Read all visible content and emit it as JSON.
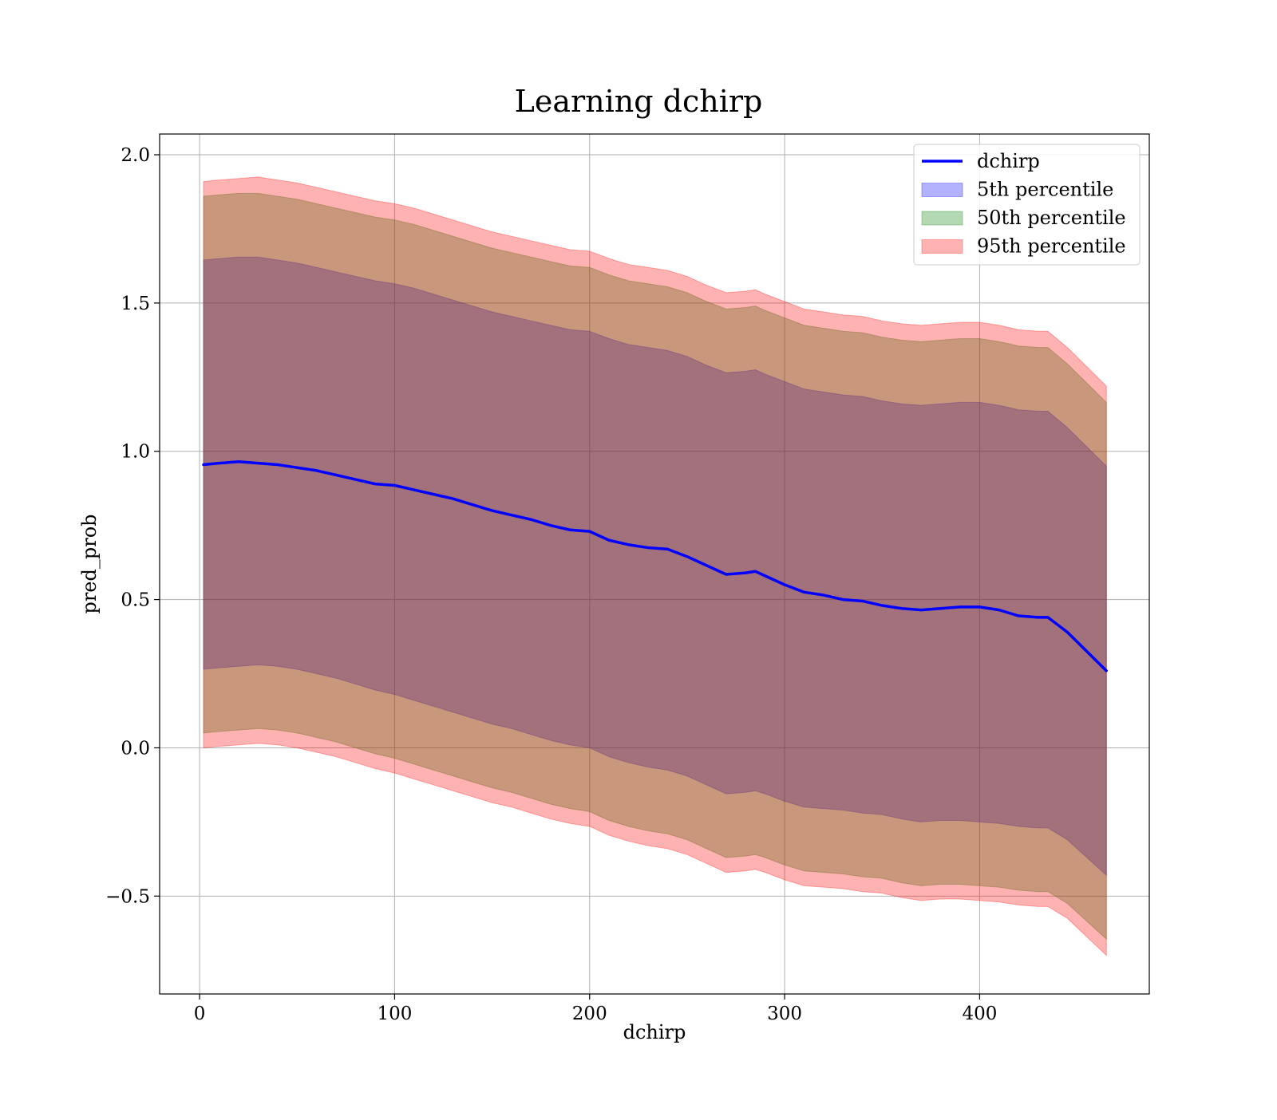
{
  "chart_data": {
    "type": "area",
    "title": "Learning dchirp",
    "xlabel": "dchirp",
    "ylabel": "pred_prob",
    "xlim": [
      -20.5,
      487
    ],
    "ylim": [
      -0.83,
      2.07
    ],
    "grid": true,
    "legend_position": "top-right",
    "x_ticks": [
      0,
      100,
      200,
      300,
      400
    ],
    "y_ticks": [
      -0.5,
      0.0,
      0.5,
      1.0,
      1.5,
      2.0
    ],
    "x_tick_labels": [
      "0",
      "100",
      "200",
      "300",
      "400"
    ],
    "y_tick_labels": [
      "−0.5",
      "0.0",
      "0.5",
      "1.0",
      "1.5",
      "2.0"
    ],
    "colors": {
      "line": "#0000ff",
      "band_5th": "#0000ff",
      "band_50th": "#008000",
      "band_95th": "#ff0000",
      "grid": "#b0b0b0"
    },
    "x": [
      2,
      10,
      20,
      30,
      40,
      50,
      60,
      70,
      80,
      90,
      100,
      110,
      120,
      130,
      140,
      150,
      160,
      170,
      180,
      190,
      200,
      210,
      220,
      230,
      240,
      250,
      260,
      270,
      280,
      285,
      290,
      300,
      310,
      320,
      330,
      340,
      350,
      360,
      370,
      380,
      390,
      400,
      410,
      420,
      430,
      435,
      445,
      465
    ],
    "series": [
      {
        "name": "dchirp",
        "kind": "line",
        "values": [
          0.955,
          0.96,
          0.965,
          0.96,
          0.955,
          0.945,
          0.935,
          0.92,
          0.905,
          0.89,
          0.885,
          0.87,
          0.855,
          0.84,
          0.82,
          0.8,
          0.785,
          0.77,
          0.75,
          0.735,
          0.73,
          0.7,
          0.685,
          0.675,
          0.67,
          0.645,
          0.615,
          0.585,
          0.59,
          0.595,
          0.58,
          0.55,
          0.525,
          0.515,
          0.5,
          0.495,
          0.48,
          0.47,
          0.465,
          0.47,
          0.475,
          0.475,
          0.465,
          0.445,
          0.44,
          0.44,
          0.39,
          0.26
        ]
      },
      {
        "name": "5th percentile",
        "kind": "band",
        "lower": [
          0.265,
          0.27,
          0.275,
          0.28,
          0.275,
          0.265,
          0.25,
          0.235,
          0.215,
          0.195,
          0.18,
          0.16,
          0.14,
          0.12,
          0.1,
          0.08,
          0.065,
          0.045,
          0.025,
          0.01,
          0.0,
          -0.03,
          -0.05,
          -0.065,
          -0.075,
          -0.095,
          -0.125,
          -0.155,
          -0.15,
          -0.145,
          -0.155,
          -0.18,
          -0.2,
          -0.205,
          -0.21,
          -0.22,
          -0.225,
          -0.24,
          -0.25,
          -0.245,
          -0.245,
          -0.25,
          -0.255,
          -0.265,
          -0.27,
          -0.27,
          -0.31,
          -0.43
        ],
        "upper": [
          1.645,
          1.65,
          1.655,
          1.655,
          1.645,
          1.635,
          1.62,
          1.605,
          1.59,
          1.575,
          1.565,
          1.55,
          1.53,
          1.51,
          1.49,
          1.47,
          1.455,
          1.44,
          1.425,
          1.41,
          1.405,
          1.38,
          1.36,
          1.35,
          1.34,
          1.32,
          1.29,
          1.265,
          1.27,
          1.275,
          1.26,
          1.235,
          1.21,
          1.2,
          1.19,
          1.185,
          1.17,
          1.16,
          1.155,
          1.16,
          1.165,
          1.165,
          1.155,
          1.14,
          1.135,
          1.135,
          1.08,
          0.95
        ]
      },
      {
        "name": "50th percentile",
        "kind": "band",
        "lower": [
          0.05,
          0.055,
          0.06,
          0.065,
          0.06,
          0.05,
          0.035,
          0.02,
          0.0,
          -0.02,
          -0.035,
          -0.055,
          -0.075,
          -0.095,
          -0.115,
          -0.135,
          -0.15,
          -0.17,
          -0.19,
          -0.205,
          -0.215,
          -0.245,
          -0.265,
          -0.28,
          -0.29,
          -0.31,
          -0.34,
          -0.37,
          -0.365,
          -0.36,
          -0.37,
          -0.395,
          -0.415,
          -0.42,
          -0.425,
          -0.435,
          -0.44,
          -0.455,
          -0.465,
          -0.46,
          -0.46,
          -0.465,
          -0.47,
          -0.48,
          -0.485,
          -0.485,
          -0.525,
          -0.645
        ],
        "upper": [
          1.86,
          1.865,
          1.87,
          1.87,
          1.86,
          1.85,
          1.835,
          1.82,
          1.805,
          1.79,
          1.78,
          1.765,
          1.745,
          1.725,
          1.705,
          1.685,
          1.67,
          1.655,
          1.64,
          1.625,
          1.62,
          1.595,
          1.575,
          1.565,
          1.555,
          1.535,
          1.505,
          1.48,
          1.485,
          1.49,
          1.475,
          1.45,
          1.425,
          1.415,
          1.405,
          1.4,
          1.385,
          1.375,
          1.37,
          1.375,
          1.38,
          1.38,
          1.37,
          1.355,
          1.35,
          1.35,
          1.295,
          1.165
        ]
      },
      {
        "name": "95th percentile",
        "kind": "band",
        "lower": [
          0.0,
          0.005,
          0.01,
          0.015,
          0.01,
          0.0,
          -0.015,
          -0.03,
          -0.05,
          -0.07,
          -0.085,
          -0.105,
          -0.125,
          -0.145,
          -0.165,
          -0.185,
          -0.2,
          -0.22,
          -0.24,
          -0.255,
          -0.265,
          -0.295,
          -0.315,
          -0.33,
          -0.34,
          -0.36,
          -0.39,
          -0.42,
          -0.415,
          -0.41,
          -0.42,
          -0.445,
          -0.465,
          -0.47,
          -0.475,
          -0.485,
          -0.49,
          -0.505,
          -0.515,
          -0.51,
          -0.51,
          -0.515,
          -0.52,
          -0.53,
          -0.535,
          -0.535,
          -0.575,
          -0.7
        ],
        "upper": [
          1.91,
          1.915,
          1.92,
          1.925,
          1.915,
          1.905,
          1.89,
          1.875,
          1.86,
          1.845,
          1.835,
          1.82,
          1.8,
          1.78,
          1.76,
          1.74,
          1.725,
          1.71,
          1.695,
          1.68,
          1.675,
          1.65,
          1.63,
          1.62,
          1.61,
          1.59,
          1.56,
          1.535,
          1.54,
          1.545,
          1.53,
          1.505,
          1.48,
          1.47,
          1.46,
          1.455,
          1.44,
          1.43,
          1.425,
          1.43,
          1.435,
          1.435,
          1.425,
          1.41,
          1.405,
          1.405,
          1.35,
          1.22
        ]
      }
    ]
  }
}
